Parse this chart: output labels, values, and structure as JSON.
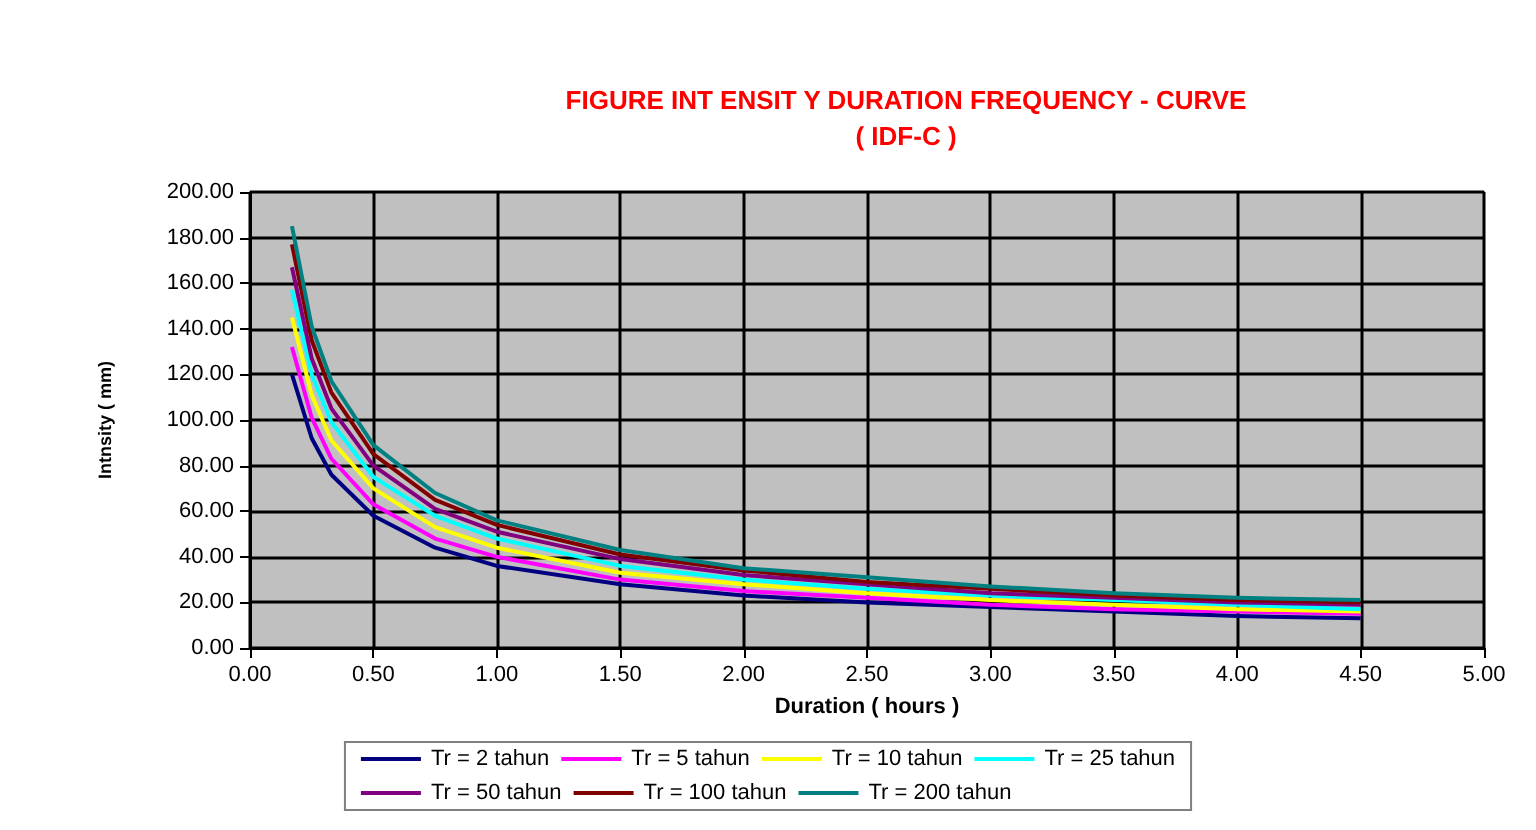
{
  "chart_data": {
    "type": "line",
    "title": "FIGURE INT ENSIT Y DURATION FREQUENCY - CURVE\n( IDF-C )",
    "xlabel": "Duration ( hours )",
    "ylabel": "Intnsity ( mm)",
    "x": [
      0.17,
      0.25,
      0.33,
      0.5,
      0.75,
      1,
      1.5,
      2,
      2.5,
      3,
      3.5,
      4,
      4.5
    ],
    "series": [
      {
        "name": "Tr = 2 tahun",
        "color": "#000080",
        "values": [
          120,
          92,
          76,
          58,
          44,
          36,
          28,
          23,
          20,
          18,
          16,
          14,
          13
        ]
      },
      {
        "name": "Tr = 5 tahun",
        "color": "#ff00ff",
        "values": [
          132,
          101,
          83,
          63,
          48,
          40,
          30,
          25,
          22,
          19,
          17,
          16,
          15
        ]
      },
      {
        "name": "Tr = 10 tahun",
        "color": "#ffff00",
        "values": [
          145,
          111,
          91,
          70,
          53,
          44,
          33,
          28,
          24,
          21,
          19,
          17,
          16
        ]
      },
      {
        "name": "Tr = 25 tahun",
        "color": "#00ffff",
        "values": [
          157,
          120,
          99,
          75,
          58,
          48,
          36,
          30,
          26,
          23,
          21,
          19,
          17
        ]
      },
      {
        "name": "Tr = 50 tahun",
        "color": "#800080",
        "values": [
          167,
          127,
          105,
          80,
          61,
          51,
          39,
          32,
          28,
          24,
          22,
          20,
          19
        ]
      },
      {
        "name": "Tr = 100 tahun",
        "color": "#800000",
        "values": [
          177,
          135,
          112,
          85,
          65,
          54,
          41,
          34,
          29,
          26,
          23,
          21,
          20
        ]
      },
      {
        "name": "Tr = 200 tahun",
        "color": "#008080",
        "values": [
          185,
          141,
          117,
          89,
          68,
          56,
          43,
          35,
          31,
          27,
          24,
          22,
          21
        ]
      }
    ],
    "xlim": [
      0,
      5
    ],
    "xticks": [
      {
        "value": 0,
        "label": "0.00"
      },
      {
        "value": 0.5,
        "label": "0.50"
      },
      {
        "value": 1,
        "label": "1.00"
      },
      {
        "value": 1.5,
        "label": "1.50"
      },
      {
        "value": 2,
        "label": "2.00"
      },
      {
        "value": 2.5,
        "label": "2.50"
      },
      {
        "value": 3,
        "label": "3.00"
      },
      {
        "value": 3.5,
        "label": "3.50"
      },
      {
        "value": 4,
        "label": "4.00"
      },
      {
        "value": 4.5,
        "label": "4.50"
      },
      {
        "value": 5,
        "label": "5.00"
      }
    ],
    "ylim": [
      0,
      200
    ],
    "yticks": [
      {
        "value": 0,
        "label": "0.00"
      },
      {
        "value": 20,
        "label": "20.00"
      },
      {
        "value": 40,
        "label": "40.00"
      },
      {
        "value": 60,
        "label": "60.00"
      },
      {
        "value": 80,
        "label": "80.00"
      },
      {
        "value": 100,
        "label": "100.00"
      },
      {
        "value": 120,
        "label": "120.00"
      },
      {
        "value": 140,
        "label": "140.00"
      },
      {
        "value": 160,
        "label": "160.00"
      },
      {
        "value": 180,
        "label": "180.00"
      },
      {
        "value": 200,
        "label": "200.00"
      }
    ],
    "grid": true,
    "legend": "bottom",
    "marker": "none",
    "line_style": "solid"
  }
}
